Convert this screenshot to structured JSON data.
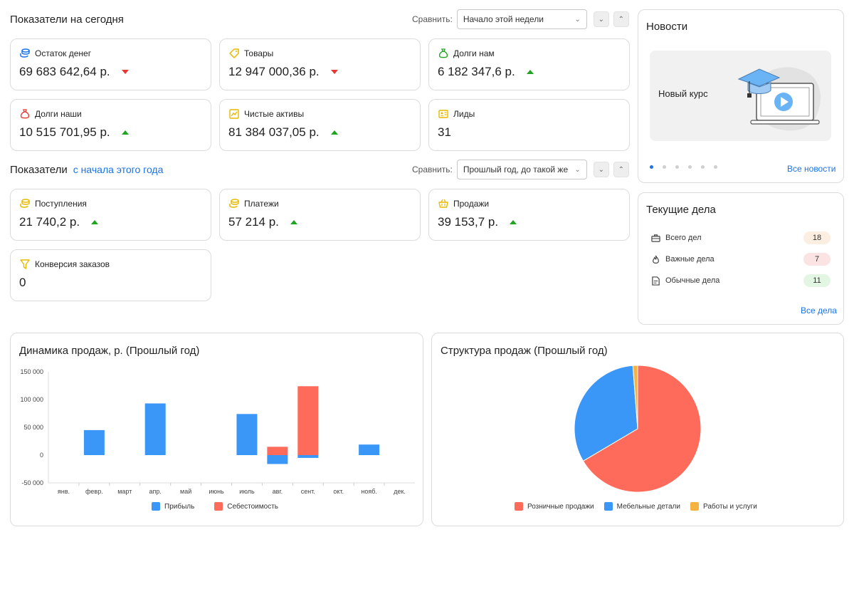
{
  "today": {
    "title": "Показатели на сегодня",
    "compare_label": "Сравнить:",
    "compare_value": "Начало этой недели",
    "metrics": [
      {
        "label": "Остаток денег",
        "value": "69 683 642,64 р.",
        "trend": "down",
        "icon": "coins-icon"
      },
      {
        "label": "Товары",
        "value": "12 947 000,36 р.",
        "trend": "down",
        "icon": "tag-icon"
      },
      {
        "label": "Долги нам",
        "value": "6 182 347,6 р.",
        "trend": "up",
        "icon": "money-bag-icon"
      },
      {
        "label": "Долги наши",
        "value": "10 515 701,95 р.",
        "trend": "up",
        "icon": "money-bag-icon"
      },
      {
        "label": "Чистые активы",
        "value": "81 384 037,05 р.",
        "trend": "up",
        "icon": "chart-icon"
      },
      {
        "label": "Лиды",
        "value": "31",
        "trend": "none",
        "icon": "contact-card-icon"
      }
    ]
  },
  "year": {
    "title": "Показатели",
    "title_link": "с начала этого года",
    "compare_label": "Сравнить:",
    "compare_value": "Прошлый год, до такой же даты",
    "metrics": [
      {
        "label": "Поступления",
        "value": "21 740,2 р.",
        "trend": "up",
        "icon": "coins-icon"
      },
      {
        "label": "Платежи",
        "value": "57 214 р.",
        "trend": "up",
        "icon": "coins-icon"
      },
      {
        "label": "Продажи",
        "value": "39 153,7 р.",
        "trend": "up",
        "icon": "basket-icon"
      },
      {
        "label": "Конверсия заказов",
        "value": "0",
        "trend": "none",
        "icon": "funnel-icon"
      }
    ]
  },
  "news": {
    "title": "Новости",
    "banner_text": "Новый курс",
    "all_link": "Все новости",
    "dots": 6,
    "active_dot": 0
  },
  "tasks": {
    "title": "Текущие дела",
    "items": [
      {
        "label": "Всего дел",
        "count": "18",
        "bg": "#fdeee2",
        "icon": "briefcase-icon"
      },
      {
        "label": "Важные дела",
        "count": "7",
        "bg": "#fbe3e3",
        "icon": "fire-icon"
      },
      {
        "label": "Обычные дела",
        "count": "11",
        "bg": "#e3f6e3",
        "icon": "document-icon"
      }
    ],
    "all_link": "Все дела"
  },
  "colors": {
    "profit": "#3a96f7",
    "cost": "#ff6b5b",
    "third": "#f5b342",
    "up": "#1fa51f",
    "down": "#e53935"
  },
  "chart_data": [
    {
      "type": "bar",
      "title": "Динамика продаж, р. (Прошлый год)",
      "categories": [
        "янв.",
        "февр.",
        "март",
        "апр.",
        "май",
        "июнь",
        "июль",
        "авг.",
        "сент.",
        "окт.",
        "нояб.",
        "дек."
      ],
      "series": [
        {
          "name": "Прибыль",
          "values": [
            0,
            45000,
            0,
            93000,
            0,
            0,
            74000,
            -16000,
            -5000,
            0,
            19000,
            0
          ]
        },
        {
          "name": "Себестоимость",
          "values": [
            0,
            0,
            0,
            0,
            0,
            0,
            0,
            15000,
            124000,
            0,
            0,
            0
          ]
        }
      ],
      "yticks": [
        "150 000",
        "100 000",
        "50 000",
        "0",
        "-50 000"
      ],
      "ylim": [
        -50000,
        150000
      ]
    },
    {
      "type": "pie",
      "title": "Структура продаж (Прошлый год)",
      "series": [
        {
          "name": "Розничные продажи",
          "values": [
            66.5
          ]
        },
        {
          "name": "Мебельные детали",
          "values": [
            32.3
          ]
        },
        {
          "name": "Работы и услуги",
          "values": [
            1.2
          ]
        }
      ],
      "legend": "bottom"
    }
  ]
}
